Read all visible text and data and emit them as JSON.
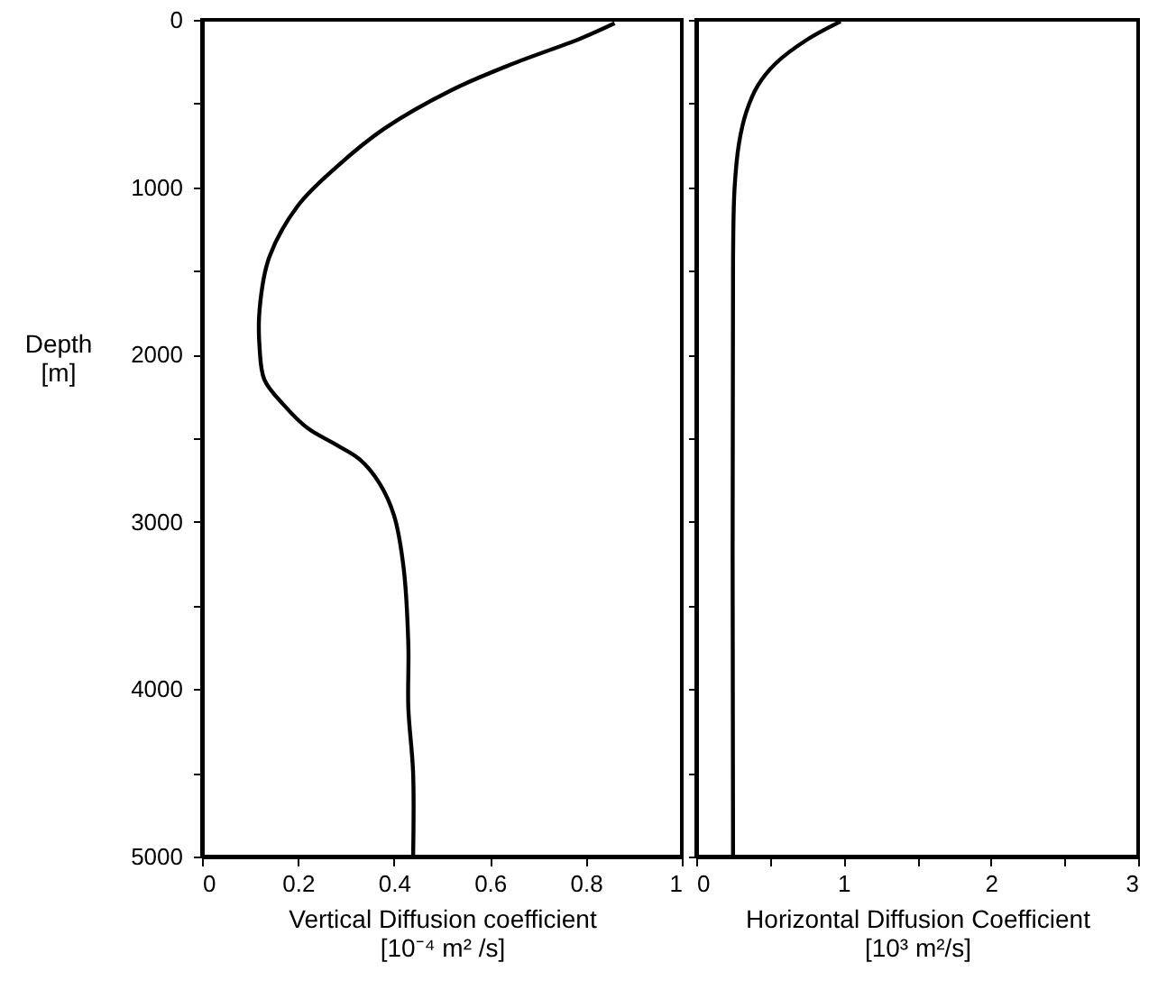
{
  "chart_data": [
    {
      "type": "line",
      "xlabel": "Vertical Diffusion coefficient\n[10⁻⁴ m² /s]",
      "ylabel": "Depth\n[m]",
      "marker": "none",
      "line_style": "solid",
      "x": [
        0.86,
        0.79,
        0.65,
        0.52,
        0.38,
        0.28,
        0.2,
        0.14,
        0.12,
        0.12,
        0.13,
        0.17,
        0.22,
        0.28,
        0.33,
        0.37,
        0.4,
        0.42,
        0.43,
        0.43,
        0.44,
        0.44
      ],
      "series": [
        {
          "color": "#000000",
          "values": [
            20,
            110,
            260,
            420,
            650,
            880,
            1110,
            1420,
            1730,
            1960,
            2150,
            2300,
            2440,
            2540,
            2630,
            2770,
            2960,
            3270,
            3730,
            4110,
            4500,
            5000
          ]
        }
      ],
      "xlim": [
        0,
        1
      ],
      "xticks": [
        0,
        0.2,
        0.4,
        0.6,
        0.8,
        1
      ],
      "ylim": [
        5000,
        0
      ],
      "yticks": [
        0,
        {
          "value": 500,
          "label": null
        },
        1000,
        {
          "value": 1500,
          "label": null
        },
        2000,
        {
          "value": 2500,
          "label": null
        },
        3000,
        {
          "value": 3500,
          "label": null
        },
        4000,
        {
          "value": 4500,
          "label": null
        },
        5000
      ]
    },
    {
      "type": "line",
      "xlabel": "Horizontal Diffusion Coefficient\n[10³ m²/s]",
      "marker": "none",
      "line_style": "solid",
      "tick_labels": "x",
      "x": [
        0.98,
        0.75,
        0.54,
        0.42,
        0.34,
        0.29,
        0.26,
        0.25,
        0.25
      ],
      "series": [
        {
          "color": "#000000",
          "values": [
            10,
            120,
            260,
            390,
            550,
            740,
            1010,
            1430,
            5000
          ]
        }
      ],
      "xlim": [
        0,
        3
      ],
      "xticks": [
        0,
        {
          "value": 0.5,
          "label": null
        },
        1,
        {
          "value": 1.5,
          "label": null
        },
        2,
        {
          "value": 2.5,
          "label": null
        },
        3
      ],
      "ylim": [
        5000,
        0
      ],
      "yticks": [
        0,
        {
          "value": 500,
          "label": null
        },
        1000,
        {
          "value": 1500,
          "label": null
        },
        2000,
        {
          "value": 2500,
          "label": null
        },
        3000,
        {
          "value": 3500,
          "label": null
        },
        4000,
        {
          "value": 4500,
          "label": null
        },
        5000
      ]
    }
  ]
}
